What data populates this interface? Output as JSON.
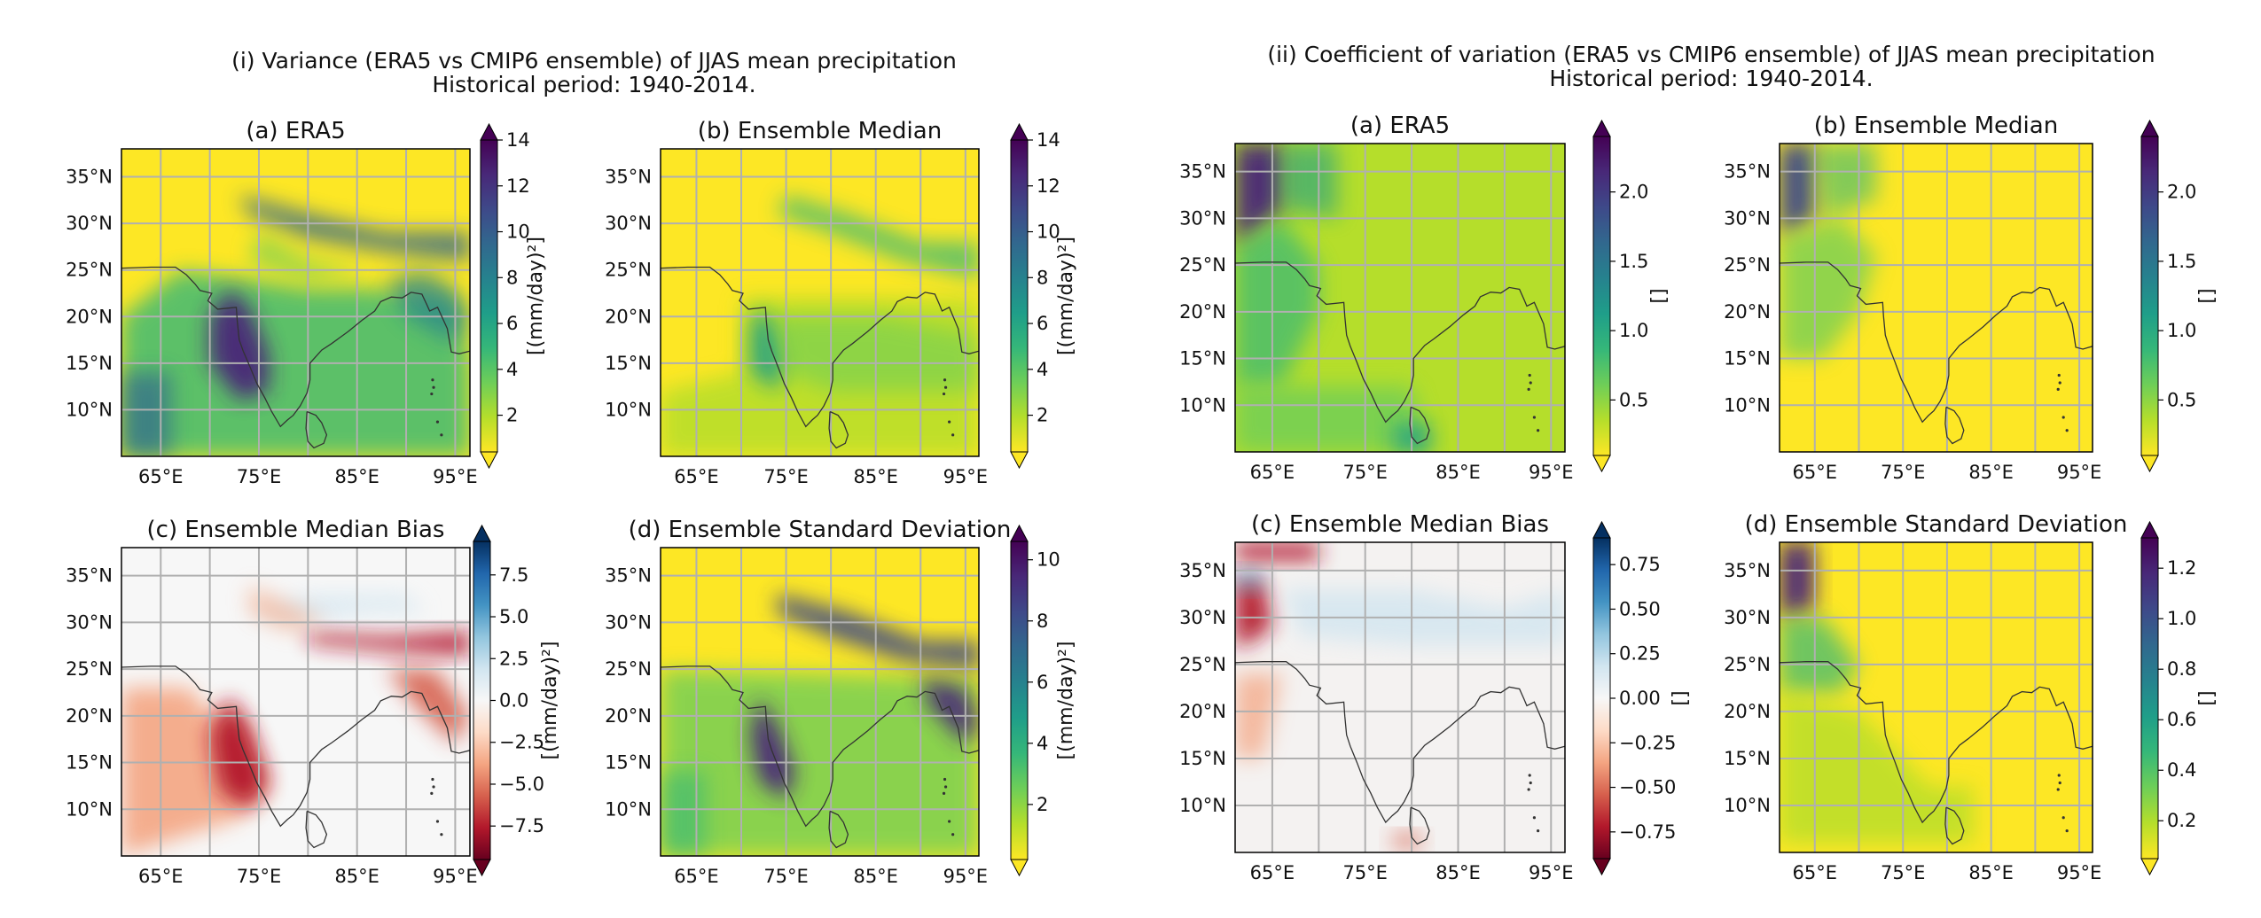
{
  "figure_titles": [
    {
      "line1": "(i) Variance (ERA5 vs CMIP6 ensemble) of JJAS mean precipitation",
      "line2": "Historical period: 1940-2014."
    },
    {
      "line1": "(ii) Coefficient of variation (ERA5 vs CMIP6 ensemble) of JJAS mean precipitation",
      "line2": "Historical period: 1940-2014."
    }
  ],
  "colors": {
    "grid": "#b0b0b0",
    "coast": "#333333",
    "viridis_reversed": [
      "#fde725",
      "#b5de2b",
      "#6ece58",
      "#35b779",
      "#1f9e89",
      "#26828e",
      "#31688e",
      "#3e4989",
      "#482878",
      "#440154"
    ],
    "rdbu": [
      "#67001f",
      "#b2182b",
      "#d6604d",
      "#f4a582",
      "#fddbc7",
      "#f7f7f7",
      "#d1e5f0",
      "#92c5de",
      "#4393c3",
      "#2166ac",
      "#053061"
    ]
  },
  "chart_data": [
    {
      "type": "heatmap",
      "title": "(a) ERA5",
      "colormap": "viridis_r",
      "cbar_label": "[(mm/day)²]",
      "cbar_range": [
        0.4,
        14
      ],
      "cbar_ticks": [
        "2",
        "4",
        "6",
        "8",
        "10",
        "12",
        "14"
      ],
      "cbar_tick_values": [
        2,
        4,
        6,
        8,
        10,
        12,
        14
      ],
      "x_ticks": [
        "65°E",
        "75°E",
        "85°E",
        "95°E"
      ],
      "y_ticks": [
        "10°N",
        "15°N",
        "20°N",
        "25°N",
        "30°N",
        "35°N"
      ],
      "extent": {
        "lon": [
          61,
          96.5
        ],
        "lat": [
          5,
          38
        ]
      }
    },
    {
      "type": "heatmap",
      "title": "(b) Ensemble Median",
      "colormap": "viridis_r",
      "cbar_label": "[(mm/day)²]",
      "cbar_range": [
        0.4,
        14
      ],
      "cbar_ticks": [
        "2",
        "4",
        "6",
        "8",
        "10",
        "12",
        "14"
      ],
      "cbar_tick_values": [
        2,
        4,
        6,
        8,
        10,
        12,
        14
      ],
      "x_ticks": [
        "65°E",
        "75°E",
        "85°E",
        "95°E"
      ],
      "y_ticks": [
        "10°N",
        "15°N",
        "20°N",
        "25°N",
        "30°N",
        "35°N"
      ],
      "extent": {
        "lon": [
          61,
          96.5
        ],
        "lat": [
          5,
          38
        ]
      }
    },
    {
      "type": "heatmap",
      "title": "(c) Ensemble Median Bias",
      "colormap": "RdBu",
      "cbar_label": "[(mm/day)²]",
      "cbar_range": [
        -9.5,
        9.5
      ],
      "cbar_ticks": [
        "−7.5",
        "−5.0",
        "−2.5",
        "0.0",
        "2.5",
        "5.0",
        "7.5"
      ],
      "cbar_tick_values": [
        -7.5,
        -5,
        -2.5,
        0,
        2.5,
        5,
        7.5
      ],
      "x_ticks": [
        "65°E",
        "75°E",
        "85°E",
        "95°E"
      ],
      "y_ticks": [
        "10°N",
        "15°N",
        "20°N",
        "25°N",
        "30°N",
        "35°N"
      ],
      "extent": {
        "lon": [
          61,
          96.5
        ],
        "lat": [
          5,
          38
        ]
      }
    },
    {
      "type": "heatmap",
      "title": "(d) Ensemble Standard Deviation",
      "colormap": "viridis_r",
      "cbar_label": "[(mm/day)²]",
      "cbar_range": [
        0.2,
        10.6
      ],
      "cbar_ticks": [
        "2",
        "4",
        "6",
        "8",
        "10"
      ],
      "cbar_tick_values": [
        2,
        4,
        6,
        8,
        10
      ],
      "x_ticks": [
        "65°E",
        "75°E",
        "85°E",
        "95°E"
      ],
      "y_ticks": [
        "10°N",
        "15°N",
        "20°N",
        "25°N",
        "30°N",
        "35°N"
      ],
      "extent": {
        "lon": [
          61,
          96.5
        ],
        "lat": [
          5,
          38
        ]
      }
    },
    {
      "type": "heatmap",
      "title": "(a) ERA5",
      "colormap": "viridis_r",
      "cbar_label": "[]",
      "cbar_range": [
        0.1,
        2.4
      ],
      "cbar_ticks": [
        "0.5",
        "1.0",
        "1.5",
        "2.0"
      ],
      "cbar_tick_values": [
        0.5,
        1,
        1.5,
        2
      ],
      "x_ticks": [
        "65°E",
        "75°E",
        "85°E",
        "95°E"
      ],
      "y_ticks": [
        "10°N",
        "15°N",
        "20°N",
        "25°N",
        "30°N",
        "35°N"
      ],
      "extent": {
        "lon": [
          61,
          96.5
        ],
        "lat": [
          5,
          38
        ]
      }
    },
    {
      "type": "heatmap",
      "title": "(b) Ensemble Median",
      "colormap": "viridis_r",
      "cbar_label": "[]",
      "cbar_range": [
        0.1,
        2.4
      ],
      "cbar_ticks": [
        "0.5",
        "1.0",
        "1.5",
        "2.0"
      ],
      "cbar_tick_values": [
        0.5,
        1,
        1.5,
        2
      ],
      "x_ticks": [
        "65°E",
        "75°E",
        "85°E",
        "95°E"
      ],
      "y_ticks": [
        "10°N",
        "15°N",
        "20°N",
        "25°N",
        "30°N",
        "35°N"
      ],
      "extent": {
        "lon": [
          61,
          96.5
        ],
        "lat": [
          5,
          38
        ]
      }
    },
    {
      "type": "heatmap",
      "title": "(c) Ensemble Median Bias",
      "colormap": "RdBu",
      "cbar_label": "[]",
      "cbar_range": [
        -0.9,
        0.9
      ],
      "cbar_ticks": [
        "−0.75",
        "−0.50",
        "−0.25",
        "0.00",
        "0.25",
        "0.50",
        "0.75"
      ],
      "cbar_tick_values": [
        -0.75,
        -0.5,
        -0.25,
        0,
        0.25,
        0.5,
        0.75
      ],
      "x_ticks": [
        "65°E",
        "75°E",
        "85°E",
        "95°E"
      ],
      "y_ticks": [
        "10°N",
        "15°N",
        "20°N",
        "25°N",
        "30°N",
        "35°N"
      ],
      "extent": {
        "lon": [
          61,
          96.5
        ],
        "lat": [
          5,
          38
        ]
      }
    },
    {
      "type": "heatmap",
      "title": "(d) Ensemble Standard Deviation",
      "colormap": "viridis_r",
      "cbar_label": "[]",
      "cbar_range": [
        0.05,
        1.32
      ],
      "cbar_ticks": [
        "0.2",
        "0.4",
        "0.6",
        "0.8",
        "1.0",
        "1.2"
      ],
      "cbar_tick_values": [
        0.2,
        0.4,
        0.6,
        0.8,
        1,
        1.2
      ],
      "x_ticks": [
        "65°E",
        "75°E",
        "85°E",
        "95°E"
      ],
      "y_ticks": [
        "10°N",
        "15°N",
        "20°N",
        "25°N",
        "30°N",
        "35°N"
      ],
      "extent": {
        "lon": [
          61,
          96.5
        ],
        "lat": [
          5,
          38
        ]
      }
    }
  ]
}
